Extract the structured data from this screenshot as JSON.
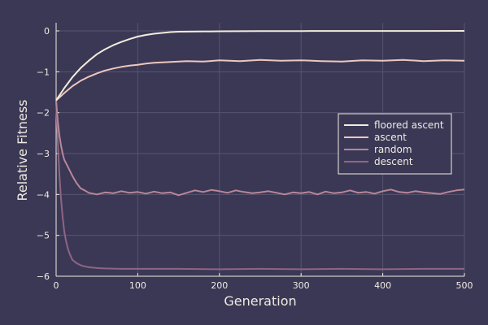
{
  "chart_data": {
    "type": "line",
    "title": "",
    "xlabel": "Generation",
    "ylabel": "Relative Fitness",
    "xlim": [
      0,
      500
    ],
    "ylim": [
      -6,
      0.2
    ],
    "xticks": [
      0,
      100,
      200,
      300,
      400,
      500
    ],
    "xtick_labels": [
      "0",
      "100",
      "200",
      "300",
      "400",
      "500"
    ],
    "yticks": [
      0,
      -1,
      -2,
      -3,
      -4,
      -5,
      -6
    ],
    "ytick_labels": [
      "0",
      "−1",
      "−2",
      "−3",
      "−4",
      "−5",
      "−6"
    ],
    "grid": true,
    "legend_position": "right",
    "background": "#3b3856",
    "series": [
      {
        "name": "floored ascent",
        "color": "#f3ecdc",
        "x": [
          0,
          10,
          20,
          30,
          40,
          50,
          60,
          70,
          80,
          90,
          100,
          110,
          120,
          130,
          140,
          150,
          175,
          200,
          250,
          300,
          350,
          400,
          450,
          500
        ],
        "y": [
          -1.7,
          -1.4,
          -1.13,
          -0.91,
          -0.73,
          -0.57,
          -0.45,
          -0.35,
          -0.27,
          -0.2,
          -0.14,
          -0.1,
          -0.07,
          -0.05,
          -0.03,
          -0.02,
          -0.015,
          -0.01,
          -0.005,
          -0.003,
          -0.002,
          -0.001,
          -0.001,
          0
        ]
      },
      {
        "name": "ascent",
        "color": "#ecc7bd",
        "x": [
          0,
          10,
          20,
          30,
          40,
          50,
          60,
          70,
          80,
          90,
          100,
          110,
          120,
          140,
          160,
          180,
          200,
          225,
          250,
          275,
          300,
          325,
          350,
          375,
          400,
          425,
          450,
          475,
          500
        ],
        "y": [
          -1.7,
          -1.52,
          -1.35,
          -1.22,
          -1.12,
          -1.04,
          -0.97,
          -0.92,
          -0.88,
          -0.85,
          -0.83,
          -0.8,
          -0.78,
          -0.76,
          -0.74,
          -0.75,
          -0.72,
          -0.74,
          -0.71,
          -0.73,
          -0.72,
          -0.74,
          -0.75,
          -0.72,
          -0.73,
          -0.71,
          -0.74,
          -0.72,
          -0.73
        ]
      },
      {
        "name": "random",
        "color": "#b88798",
        "x": [
          0,
          2,
          4,
          6,
          8,
          10,
          15,
          20,
          25,
          30,
          35,
          40,
          45,
          50,
          60,
          70,
          80,
          90,
          100,
          110,
          120,
          130,
          140,
          150,
          160,
          170,
          180,
          190,
          200,
          210,
          220,
          230,
          240,
          250,
          260,
          270,
          280,
          290,
          300,
          310,
          320,
          330,
          340,
          350,
          360,
          370,
          380,
          390,
          400,
          410,
          420,
          430,
          440,
          450,
          460,
          470,
          480,
          490,
          500
        ],
        "y": [
          -1.7,
          -2.2,
          -2.55,
          -2.8,
          -3.0,
          -3.15,
          -3.35,
          -3.55,
          -3.72,
          -3.85,
          -3.9,
          -3.96,
          -3.98,
          -4.0,
          -3.95,
          -3.97,
          -3.92,
          -3.96,
          -3.94,
          -3.98,
          -3.93,
          -3.97,
          -3.95,
          -4.02,
          -3.96,
          -3.9,
          -3.94,
          -3.89,
          -3.92,
          -3.96,
          -3.9,
          -3.94,
          -3.97,
          -3.95,
          -3.92,
          -3.96,
          -4.0,
          -3.95,
          -3.97,
          -3.94,
          -4.0,
          -3.93,
          -3.97,
          -3.95,
          -3.9,
          -3.96,
          -3.94,
          -3.98,
          -3.92,
          -3.88,
          -3.94,
          -3.96,
          -3.92,
          -3.95,
          -3.97,
          -3.99,
          -3.94,
          -3.9,
          -3.88
        ]
      },
      {
        "name": "descent",
        "color": "#8e6582",
        "x": [
          0,
          2,
          4,
          6,
          8,
          10,
          12,
          14,
          16,
          18,
          20,
          25,
          30,
          35,
          40,
          50,
          60,
          80,
          100,
          150,
          200,
          250,
          300,
          350,
          400,
          450,
          500
        ],
        "y": [
          -1.7,
          -2.7,
          -3.5,
          -4.1,
          -4.55,
          -4.9,
          -5.12,
          -5.3,
          -5.42,
          -5.52,
          -5.6,
          -5.68,
          -5.73,
          -5.76,
          -5.78,
          -5.8,
          -5.81,
          -5.82,
          -5.82,
          -5.82,
          -5.83,
          -5.82,
          -5.83,
          -5.82,
          -5.83,
          -5.82,
          -5.82
        ]
      }
    ]
  }
}
